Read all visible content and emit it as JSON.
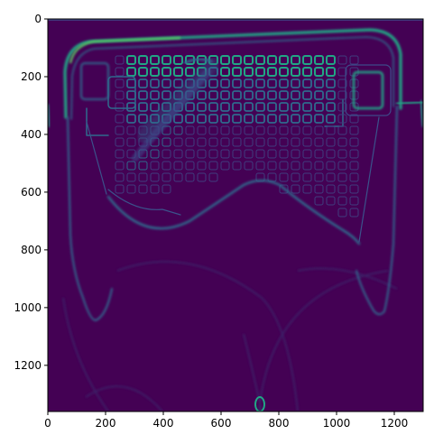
{
  "figure": {
    "xticks": [
      "0",
      "200",
      "400",
      "600",
      "800",
      "1000",
      "1200"
    ],
    "yticks": [
      "0",
      "200",
      "400",
      "600",
      "800",
      "1000",
      "1200"
    ],
    "colormap": "viridis",
    "colors": {
      "background": "#440154",
      "dim": "#3f3d7e",
      "mid": "#2f6a8d",
      "bright": "#21a685",
      "peak": "#5ec962"
    },
    "image_description_name": "edge-detected-goal-net-image"
  }
}
